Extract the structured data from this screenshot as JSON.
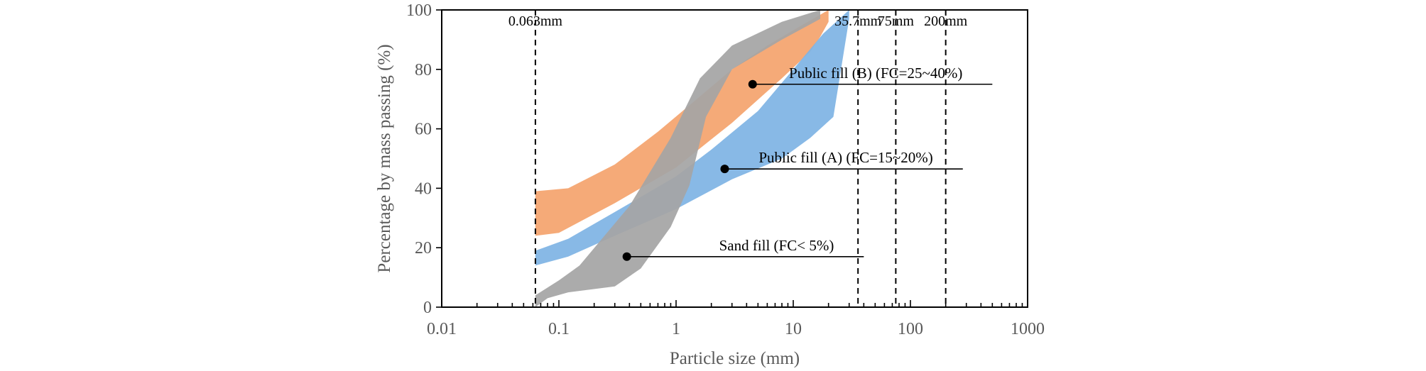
{
  "chart_data": {
    "type": "area",
    "title": "",
    "xlabel": "Particle size (mm)",
    "ylabel": "Percentage by mass passing (%)",
    "x_scale": "log",
    "xlim": [
      0.01,
      1000
    ],
    "ylim": [
      0,
      100
    ],
    "x_ticks": [
      0.01,
      0.1,
      1,
      10,
      100,
      1000
    ],
    "x_tick_labels": [
      "0.01",
      "0.1",
      "1",
      "10",
      "100",
      "1000"
    ],
    "y_ticks": [
      0,
      20,
      40,
      60,
      80,
      100
    ],
    "y_tick_labels": [
      "0",
      "20",
      "40",
      "60",
      "80",
      "100"
    ],
    "grid": false,
    "reference_lines": [
      {
        "x": 0.063,
        "label": "0.063mm"
      },
      {
        "x": 35.7,
        "label": "35.7mm"
      },
      {
        "x": 75,
        "label": "75mm"
      },
      {
        "x": 200,
        "label": "200mm"
      }
    ],
    "bands": [
      {
        "id": "public-fill-b",
        "color": "#f4a46e",
        "upper": [
          [
            0.063,
            39
          ],
          [
            0.12,
            40
          ],
          [
            0.3,
            48
          ],
          [
            0.7,
            59
          ],
          [
            1.5,
            70
          ],
          [
            3,
            80
          ],
          [
            6,
            88
          ],
          [
            12,
            95
          ],
          [
            20,
            100
          ]
        ],
        "lower": [
          [
            0.063,
            24
          ],
          [
            0.1,
            25
          ],
          [
            0.3,
            35
          ],
          [
            1,
            47
          ],
          [
            3,
            62
          ],
          [
            8,
            77
          ],
          [
            14,
            86
          ],
          [
            17,
            91
          ],
          [
            20,
            96
          ]
        ]
      },
      {
        "id": "public-fill-a",
        "color": "#7fb4e4",
        "upper": [
          [
            0.063,
            19
          ],
          [
            0.12,
            23
          ],
          [
            0.3,
            32
          ],
          [
            1,
            44
          ],
          [
            2,
            53
          ],
          [
            5,
            66
          ],
          [
            10,
            80
          ],
          [
            18,
            92
          ],
          [
            30,
            100
          ]
        ],
        "lower": [
          [
            0.063,
            14
          ],
          [
            0.12,
            17
          ],
          [
            0.3,
            24
          ],
          [
            1,
            33
          ],
          [
            3,
            43
          ],
          [
            8,
            50
          ],
          [
            14,
            57
          ],
          [
            22,
            64
          ],
          [
            30,
            97
          ]
        ]
      },
      {
        "id": "sand-fill",
        "color": "#a5a5a5",
        "upper": [
          [
            0.063,
            4
          ],
          [
            0.1,
            9
          ],
          [
            0.15,
            14
          ],
          [
            0.4,
            34
          ],
          [
            0.9,
            57
          ],
          [
            1.6,
            77
          ],
          [
            3,
            88
          ],
          [
            8,
            96
          ],
          [
            17,
            100
          ]
        ],
        "lower": [
          [
            0.063,
            0
          ],
          [
            0.08,
            3
          ],
          [
            0.12,
            5
          ],
          [
            0.3,
            7
          ],
          [
            0.5,
            13
          ],
          [
            0.9,
            27
          ],
          [
            1.3,
            41
          ],
          [
            1.8,
            64
          ],
          [
            3,
            80
          ],
          [
            8,
            90
          ],
          [
            17,
            97
          ]
        ]
      }
    ],
    "annotations": [
      {
        "text": "Public fill (B) (FC=25~40%)",
        "point": [
          4.5,
          75
        ],
        "line_end_x": 500
      },
      {
        "text": "Public fill (A) (FC=15~20%)",
        "point": [
          2.6,
          46.5
        ],
        "line_end_x": 280
      },
      {
        "text": "Sand fill (FC< 5%)",
        "point": [
          0.38,
          17
        ],
        "line_end_x": 40
      }
    ]
  }
}
